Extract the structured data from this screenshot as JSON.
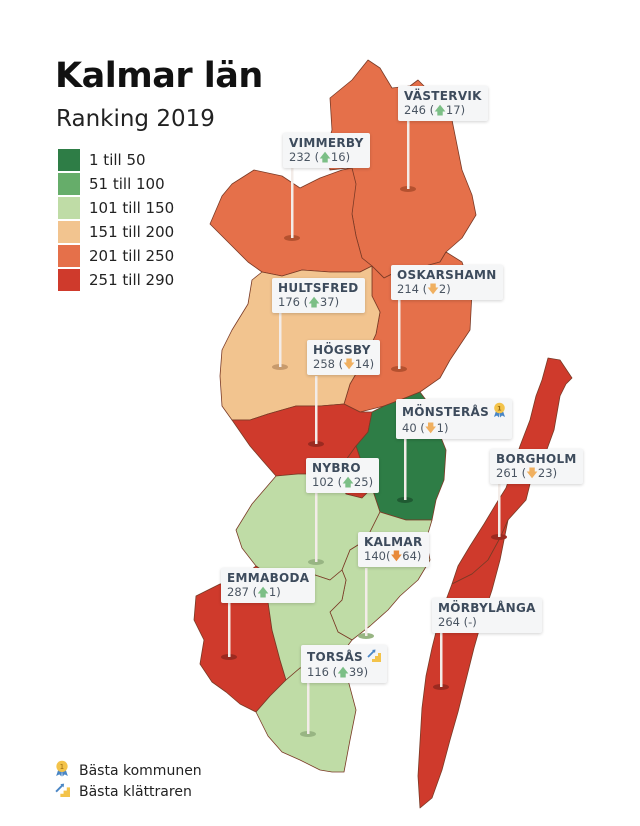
{
  "header": {
    "title": "Kalmar län",
    "subtitle": "Ranking 2019"
  },
  "legend": [
    {
      "label": "1 till 50",
      "color": "#2e7d46"
    },
    {
      "label": "51 till 100",
      "color": "#66ad6a"
    },
    {
      "label": "101 till 150",
      "color": "#bfdca6"
    },
    {
      "label": "151 till 200",
      "color": "#f2c48f"
    },
    {
      "label": "201 till 250",
      "color": "#e5704a"
    },
    {
      "label": "251 till 290",
      "color": "#cf3a2c"
    }
  ],
  "municipalities": [
    {
      "name": "VÄSTERVIK",
      "rank": "246",
      "change": "17",
      "direction": "up",
      "value_text": "246 (",
      "close": ")",
      "color": "#e5704a"
    },
    {
      "name": "VIMMERBY",
      "rank": "232",
      "change": "16",
      "direction": "up",
      "value_text": "232 (",
      "close": ")",
      "color": "#e5704a"
    },
    {
      "name": "HULTSFRED",
      "rank": "176",
      "change": "37",
      "direction": "up",
      "value_text": "176 (",
      "close": ")",
      "color": "#f2c48f"
    },
    {
      "name": "OSKARSHAMN",
      "rank": "214",
      "change": "2",
      "direction": "down",
      "value_text": "214 (",
      "close": ")",
      "color": "#e5704a"
    },
    {
      "name": "HÖGSBY",
      "rank": "258",
      "change": "14",
      "direction": "down",
      "value_text": "258 (",
      "close": ")",
      "color": "#cf3a2c"
    },
    {
      "name": "MÖNSTERÅS",
      "rank": "40",
      "change": "1",
      "direction": "down",
      "value_text": "40 (",
      "close": ")",
      "color": "#2e7d46",
      "badge": "medal-icon"
    },
    {
      "name": "BORGHOLM",
      "rank": "261",
      "change": "23",
      "direction": "down",
      "value_text": "261 (",
      "close": ")",
      "color": "#cf3a2c"
    },
    {
      "name": "NYBRO",
      "rank": "102",
      "change": "25",
      "direction": "up",
      "value_text": "102 (",
      "close": ")",
      "color": "#bfdca6"
    },
    {
      "name": "KALMAR",
      "rank": "140",
      "change": "64",
      "direction": "down",
      "value_text": "140(",
      "close": ")",
      "color": "#bfdca6"
    },
    {
      "name": "EMMABODA",
      "rank": "287",
      "change": "1",
      "direction": "up",
      "value_text": "287 (",
      "close": ")",
      "color": "#cf3a2c"
    },
    {
      "name": "MÖRBYLÅNGA",
      "rank": "264",
      "change": "-",
      "direction": "none",
      "value_text": "264 (-)",
      "close": "",
      "color": "#cf3a2c"
    },
    {
      "name": "TORSÅS",
      "rank": "116",
      "change": "39",
      "direction": "up",
      "value_text": "116 (",
      "close": ")",
      "color": "#bfdca6",
      "badge": "climber-icon"
    }
  ],
  "footer": [
    {
      "icon": "medal-icon",
      "label": "Bästa kommunen"
    },
    {
      "icon": "climber-icon",
      "label": "Bästa klättraren"
    }
  ]
}
